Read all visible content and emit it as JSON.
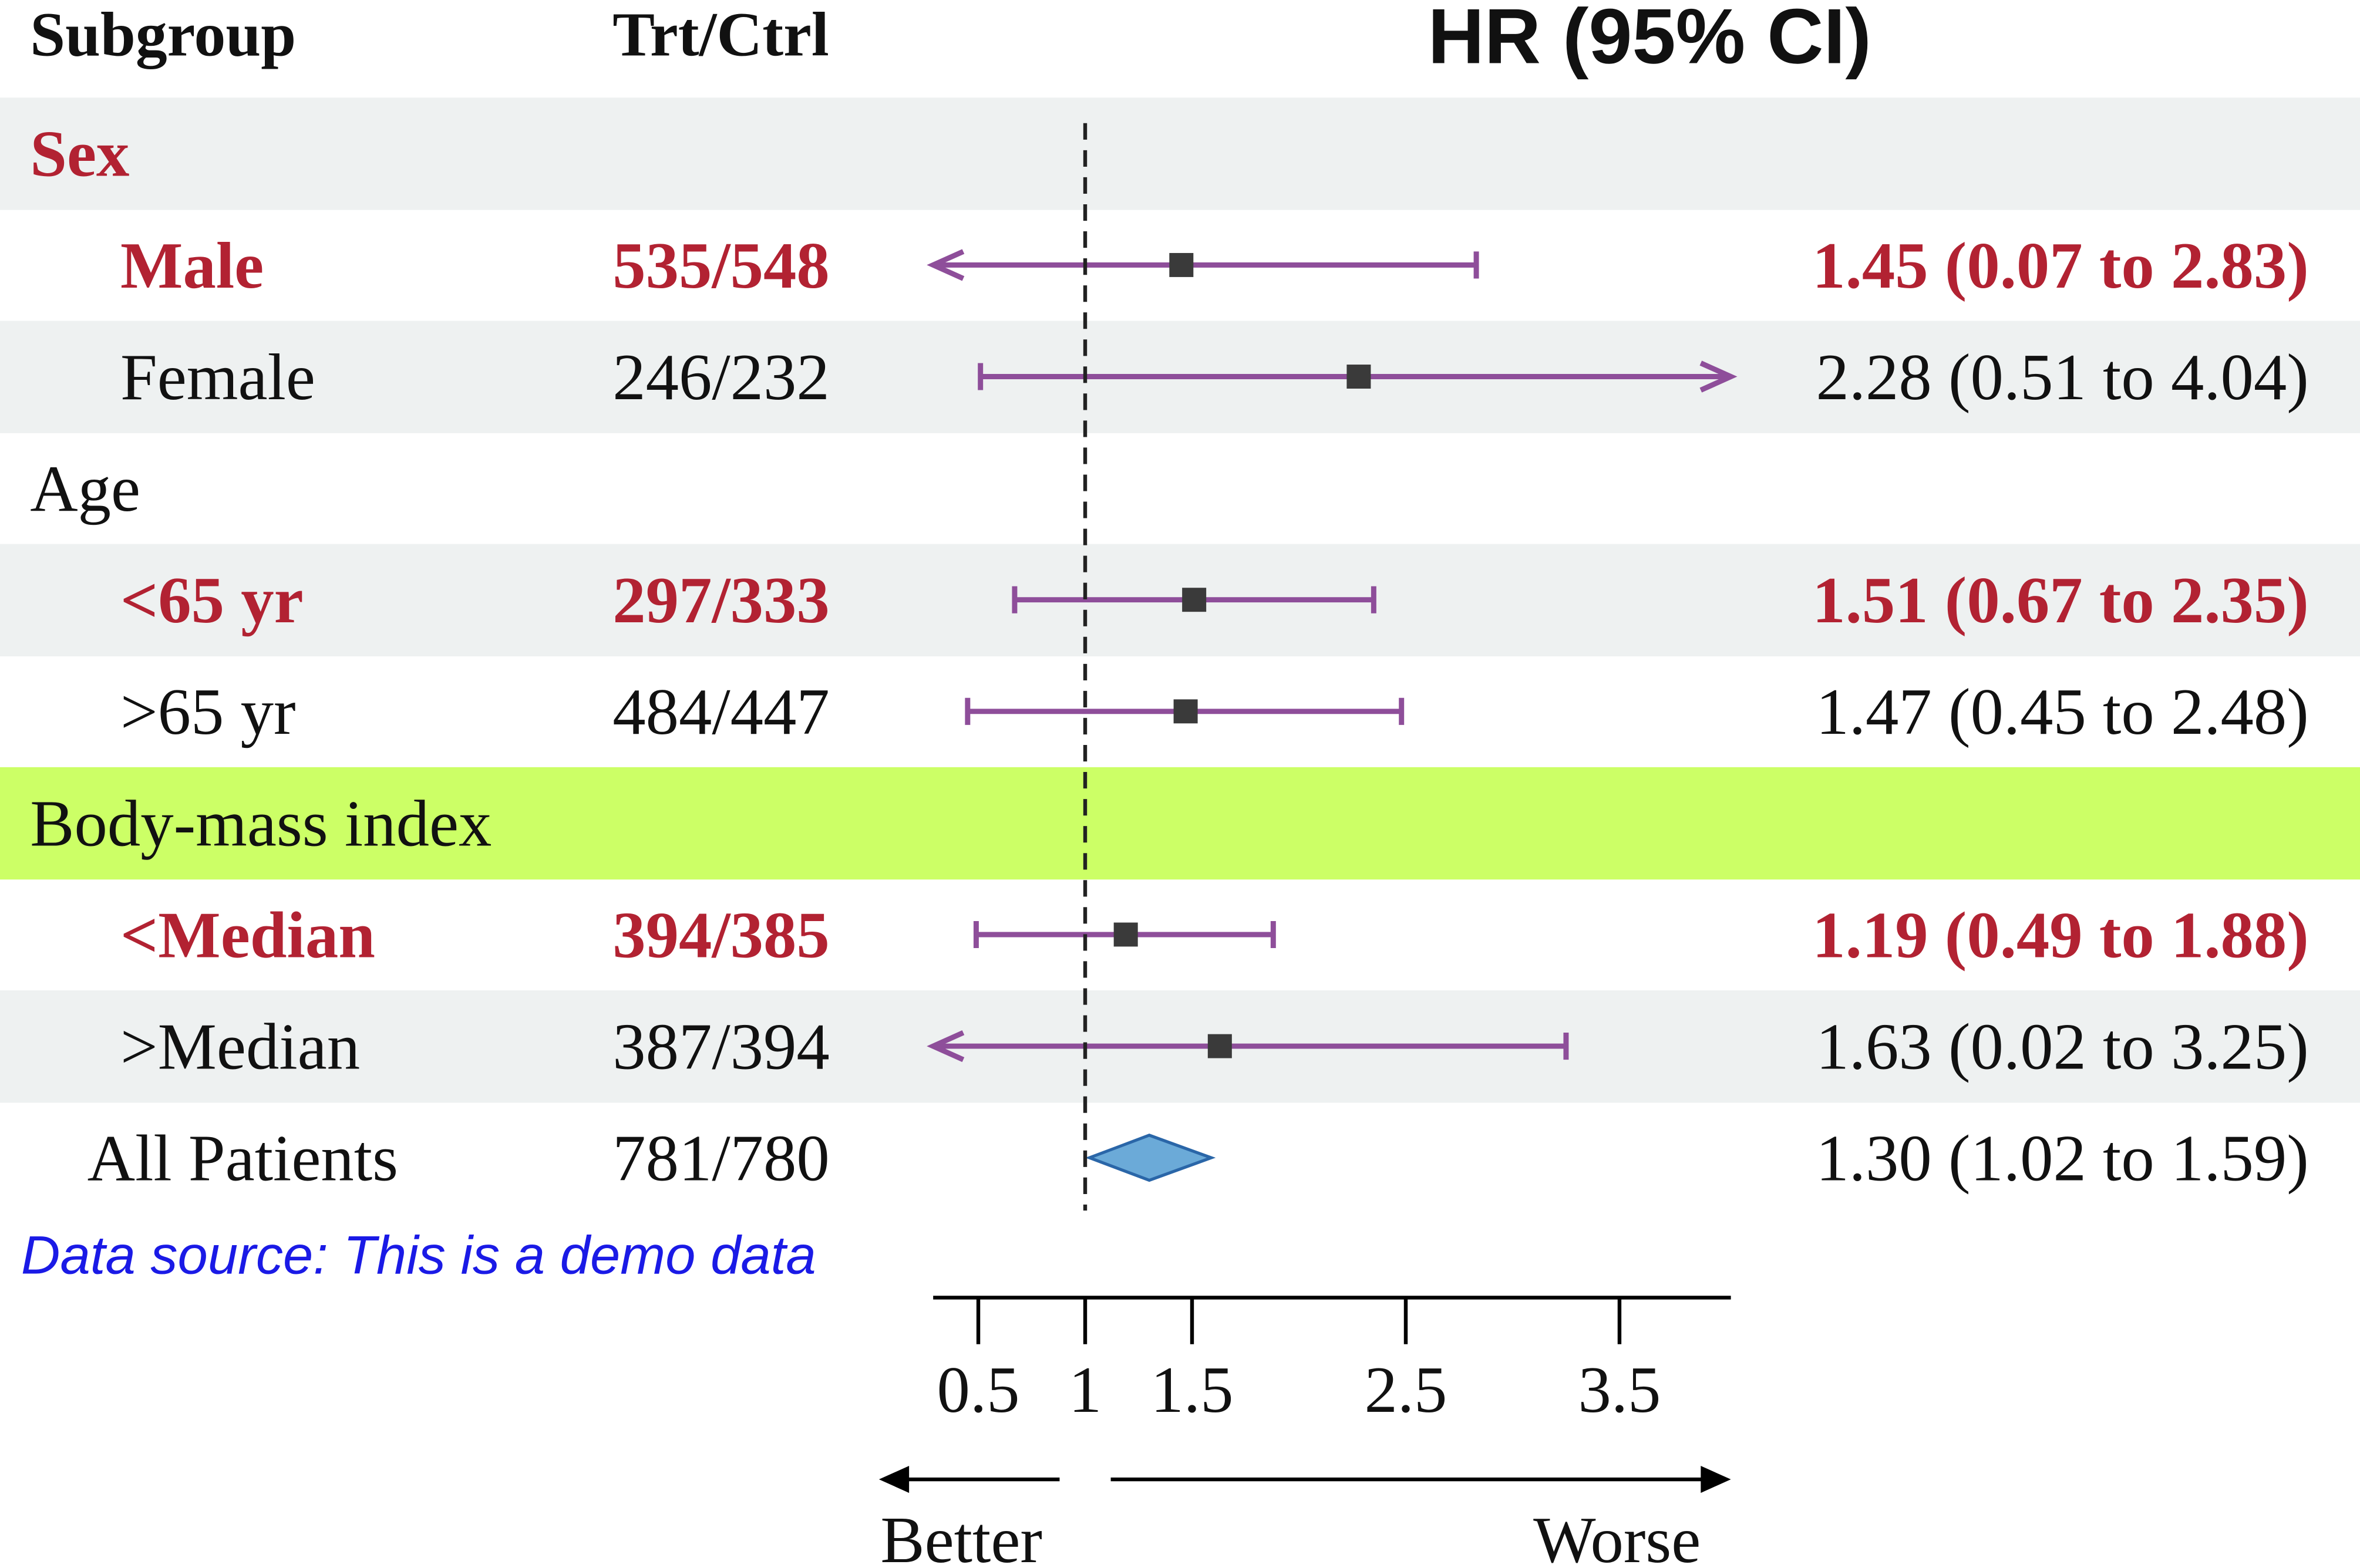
{
  "colors": {
    "highlight_text": "#B22232",
    "normal_text": "#111111",
    "band_grey": "#EEF1F1",
    "band_lime": "#CCFF66",
    "ci_line": "#8E4E9A",
    "point": "#3A3A3A",
    "diamond_fill": "#6BAAD8",
    "diamond_stroke": "#2A66A8",
    "source_text": "#1A1AE6"
  },
  "headers": {
    "subgroup": "Subgroup",
    "trt_ctrl": "Trt/Ctrl",
    "hr_ci": "HR (95% CI)"
  },
  "footnote": "Data source: This is a demo data",
  "chart_data": {
    "type": "forest",
    "reference_line": 1,
    "xlim": [
      0.25,
      4.0
    ],
    "ticks": [
      0.5,
      1,
      1.5,
      2.5,
      3.5
    ],
    "tick_labels": [
      "0.5",
      "1",
      "1.5",
      "2.5",
      "3.5"
    ],
    "direction_labels": {
      "left": "Better",
      "right": "Worse"
    },
    "rows": [
      {
        "label": "Sex",
        "kind": "group",
        "highlight": true,
        "band": "grey"
      },
      {
        "label": "Male",
        "kind": "item",
        "highlight": true,
        "band": "white",
        "n": "535/548",
        "hr": 1.45,
        "lo": 0.07,
        "hi": 2.83,
        "text": "1.45 (0.07 to 2.83)"
      },
      {
        "label": "Female",
        "kind": "item",
        "highlight": false,
        "band": "grey",
        "n": "246/232",
        "hr": 2.28,
        "lo": 0.51,
        "hi": 4.04,
        "text": "2.28 (0.51 to 4.04)"
      },
      {
        "label": "Age",
        "kind": "group",
        "highlight": false,
        "band": "white"
      },
      {
        "label": "<65 yr",
        "kind": "item",
        "highlight": true,
        "band": "grey",
        "n": "297/333",
        "hr": 1.51,
        "lo": 0.67,
        "hi": 2.35,
        "text": "1.51 (0.67 to 2.35)"
      },
      {
        "label": ">65 yr",
        "kind": "item",
        "highlight": false,
        "band": "white",
        "n": "484/447",
        "hr": 1.47,
        "lo": 0.45,
        "hi": 2.48,
        "text": "1.47 (0.45 to 2.48)"
      },
      {
        "label": "Body-mass index",
        "kind": "group",
        "highlight": false,
        "band": "lime"
      },
      {
        "label": "<Median",
        "kind": "item",
        "highlight": true,
        "band": "white",
        "n": "394/385",
        "hr": 1.19,
        "lo": 0.49,
        "hi": 1.88,
        "text": "1.19 (0.49 to 1.88)"
      },
      {
        "label": ">Median",
        "kind": "item",
        "highlight": false,
        "band": "grey",
        "n": "387/394",
        "hr": 1.63,
        "lo": 0.02,
        "hi": 3.25,
        "text": "1.63 (0.02 to 3.25)"
      },
      {
        "label": "All Patients",
        "kind": "overall",
        "highlight": false,
        "band": "white",
        "n": "781/780",
        "hr": 1.3,
        "lo": 1.02,
        "hi": 1.59,
        "text": "1.30 (1.02 to 1.59)"
      }
    ]
  }
}
